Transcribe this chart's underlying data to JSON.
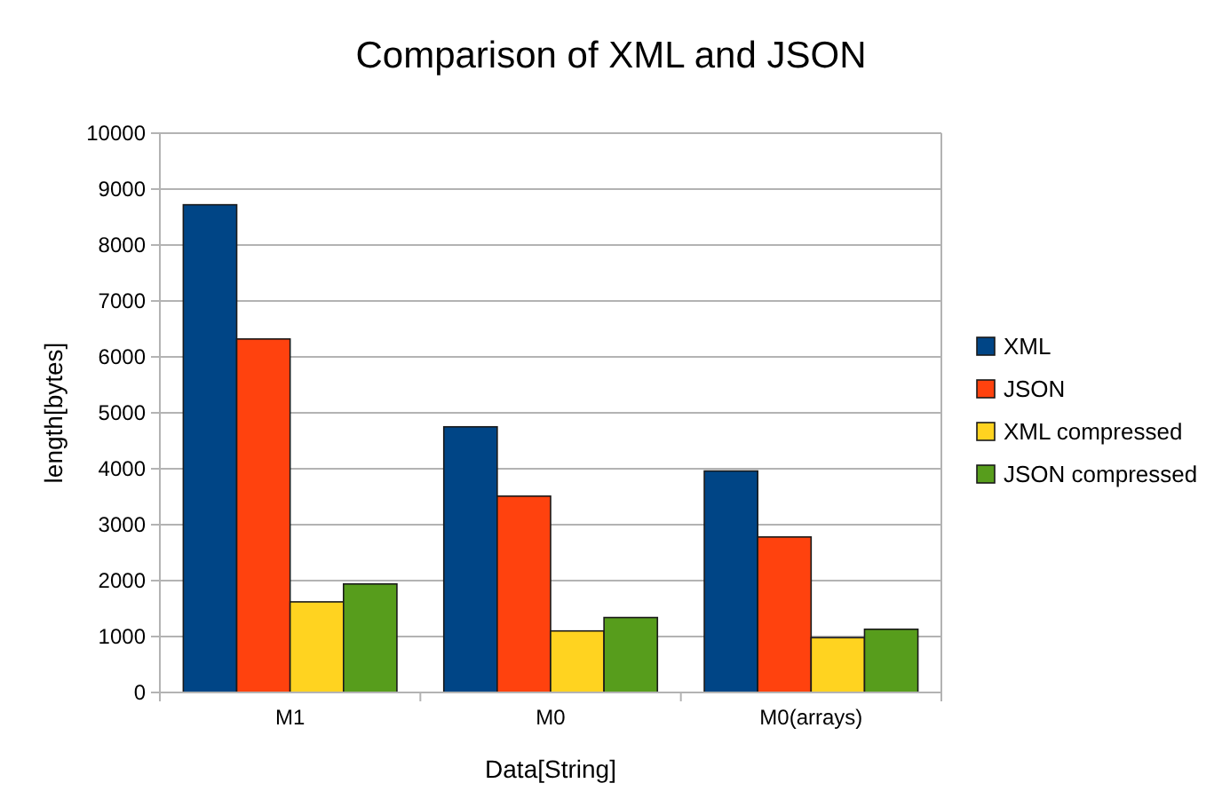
{
  "chart_data": {
    "type": "bar",
    "title": "Comparison of XML and JSON",
    "xlabel": "Data[String]",
    "ylabel": "length[bytes]",
    "categories": [
      "M1",
      "M0",
      "M0(arrays)"
    ],
    "series": [
      {
        "name": "XML",
        "color": "#004586",
        "values": [
          8720,
          4750,
          3960
        ]
      },
      {
        "name": "JSON",
        "color": "#ff420e",
        "values": [
          6320,
          3510,
          2780
        ]
      },
      {
        "name": "XML compressed",
        "color": "#ffd320",
        "values": [
          1620,
          1100,
          980
        ]
      },
      {
        "name": "JSON compressed",
        "color": "#579d1c",
        "values": [
          1940,
          1340,
          1130
        ]
      }
    ],
    "ylim": [
      0,
      10000
    ],
    "yticks": [
      0,
      1000,
      2000,
      3000,
      4000,
      5000,
      6000,
      7000,
      8000,
      9000,
      10000
    ],
    "grid": "y",
    "legend": "right"
  }
}
